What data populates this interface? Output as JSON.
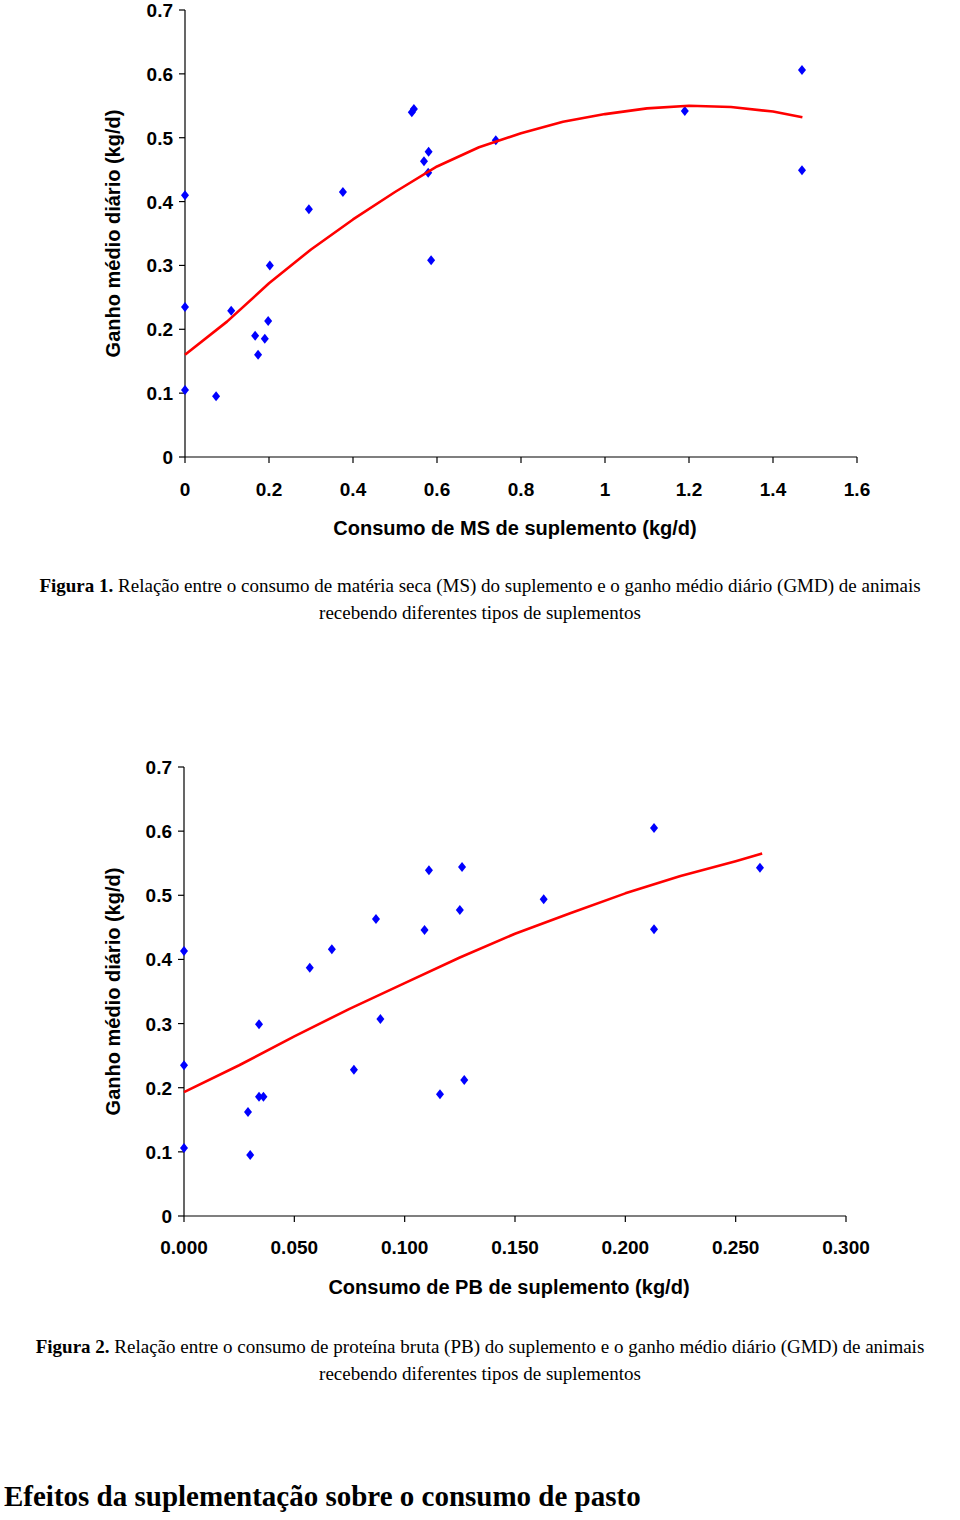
{
  "chart_data": [
    {
      "type": "scatter",
      "x_label": "Consumo de MS de suplemento (kg/d)",
      "y_label": "Ganho médio diário (kg/d)",
      "caption": {
        "label": "Figura 1.",
        "text": "Relação entre o consumo de matéria seca (MS) do suplemento e o ganho médio diário (GMD) de animais recebendo diferentes tipos de suplementos"
      },
      "xlim": [
        0,
        1.6
      ],
      "xticks": [
        0,
        0.2,
        0.4,
        0.6,
        0.8,
        1,
        1.2,
        1.4,
        1.6
      ],
      "ylim": [
        0,
        0.7
      ],
      "yticks": [
        0,
        0.1,
        0.2,
        0.3,
        0.4,
        0.5,
        0.6,
        0.7
      ],
      "grid": false,
      "series": [
        {
          "type": "scatter",
          "marker": "diamond",
          "color": "#0000ff",
          "x": [
            0,
            0,
            0,
            0.074,
            0.11,
            0.167,
            0.174,
            0.19,
            0.198,
            0.202,
            0.295,
            0.376,
            0.54,
            0.545,
            0.569,
            0.58,
            0.579,
            0.586,
            0.74,
            1.19,
            1.469,
            1.469
          ],
          "values": [
            0.41,
            0.235,
            0.105,
            0.095,
            0.229,
            0.19,
            0.16,
            0.185,
            0.213,
            0.3,
            0.388,
            0.415,
            0.54,
            0.545,
            0.463,
            0.478,
            0.445,
            0.308,
            0.496,
            0.542,
            0.606,
            0.449
          ]
        },
        {
          "type": "line",
          "line_style": "solid",
          "color": "#ff0000",
          "x": [
            0,
            0.1,
            0.2,
            0.3,
            0.4,
            0.5,
            0.6,
            0.7,
            0.8,
            0.9,
            1.0,
            1.1,
            1.2,
            1.3,
            1.4,
            1.47
          ],
          "values": [
            0.16,
            0.212,
            0.272,
            0.325,
            0.372,
            0.415,
            0.455,
            0.485,
            0.507,
            0.525,
            0.537,
            0.546,
            0.55,
            0.548,
            0.541,
            0.532
          ]
        }
      ]
    },
    {
      "type": "scatter",
      "x_label": "Consumo de PB de suplemento (kg/d)",
      "y_label": "Ganho médio diário (kg/d)",
      "caption": {
        "label": "Figura 2.",
        "text": "Relação entre o consumo de proteína bruta (PB) do suplemento e o ganho médio diário (GMD) de animais recebendo diferentes tipos de suplementos"
      },
      "xlim": [
        0,
        0.3
      ],
      "xticks": [
        {
          "value": 0,
          "label": "0.000"
        },
        {
          "value": 0.05,
          "label": "0.050"
        },
        {
          "value": 0.1,
          "label": "0.100"
        },
        {
          "value": 0.15,
          "label": "0.150"
        },
        {
          "value": 0.2,
          "label": "0.200"
        },
        {
          "value": 0.25,
          "label": "0.250"
        },
        {
          "value": 0.3,
          "label": "0.300"
        }
      ],
      "ylim": [
        0,
        0.7
      ],
      "yticks": [
        0,
        0.1,
        0.2,
        0.3,
        0.4,
        0.5,
        0.6,
        0.7
      ],
      "grid": false,
      "series": [
        {
          "type": "scatter",
          "marker": "diamond",
          "color": "#0000ff",
          "x": [
            0,
            0,
            0,
            0.029,
            0.03,
            0.034,
            0.034,
            0.036,
            0.057,
            0.067,
            0.077,
            0.087,
            0.089,
            0.109,
            0.111,
            0.116,
            0.125,
            0.126,
            0.127,
            0.163,
            0.213,
            0.213,
            0.261
          ],
          "values": [
            0.413,
            0.235,
            0.106,
            0.162,
            0.095,
            0.299,
            0.186,
            0.186,
            0.387,
            0.416,
            0.228,
            0.463,
            0.307,
            0.446,
            0.539,
            0.19,
            0.477,
            0.544,
            0.212,
            0.494,
            0.605,
            0.447,
            0.543
          ]
        },
        {
          "type": "line",
          "line_style": "solid",
          "color": "#ff0000",
          "x": [
            0,
            0.025,
            0.05,
            0.075,
            0.1,
            0.125,
            0.15,
            0.175,
            0.2,
            0.225,
            0.25,
            0.262
          ],
          "values": [
            0.193,
            0.235,
            0.28,
            0.323,
            0.363,
            0.403,
            0.44,
            0.472,
            0.503,
            0.53,
            0.553,
            0.565
          ]
        }
      ]
    }
  ],
  "heading": "Efeitos da suplementação sobre o consumo de pasto"
}
